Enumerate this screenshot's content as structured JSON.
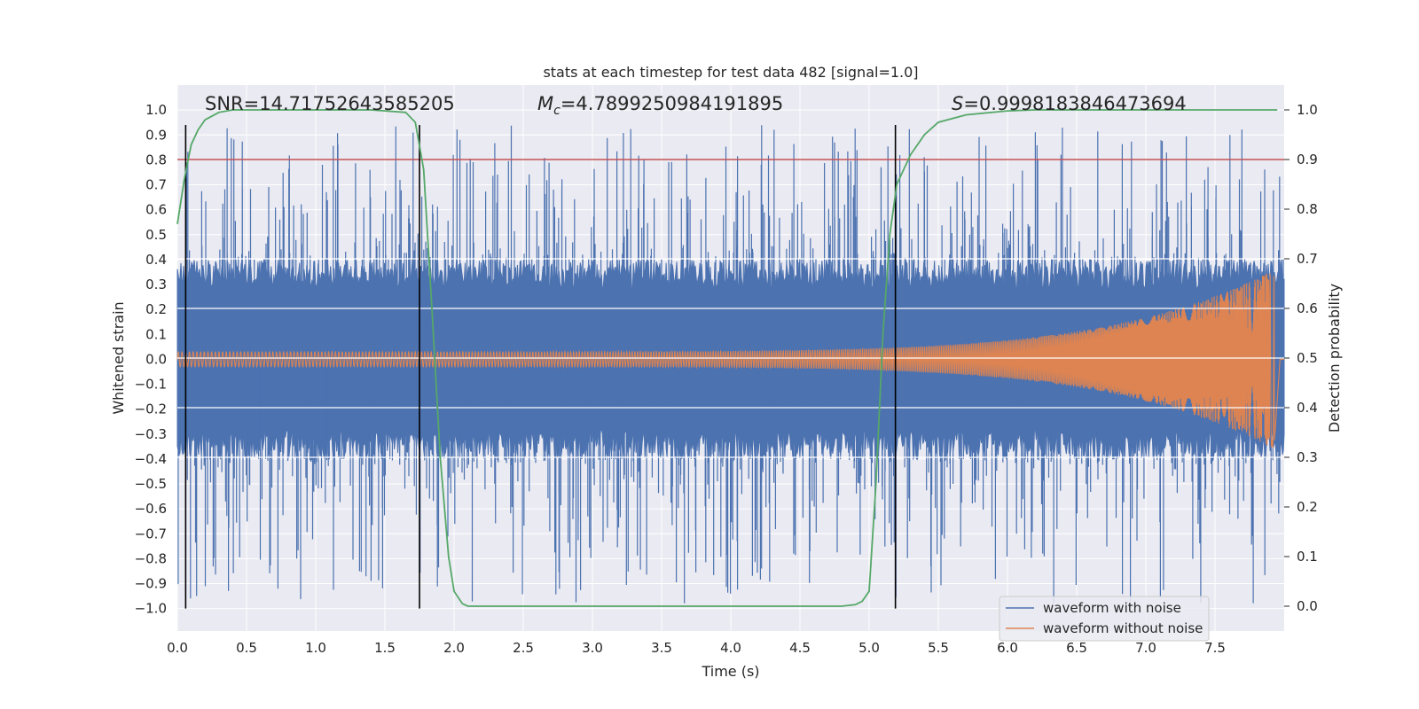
{
  "chart_data": {
    "type": "line",
    "title": "stats at each timestep for test data 482 [signal=1.0]",
    "xlabel": "Time (s)",
    "ylabel": "Whitened strain",
    "y2label": "Detection probability",
    "xlim": [
      0.0,
      8.0
    ],
    "ylim": [
      -1.09,
      1.1
    ],
    "y2lim": [
      -0.05,
      1.05
    ],
    "x_ticks": [
      "0.0",
      "0.5",
      "1.0",
      "1.5",
      "2.0",
      "2.5",
      "3.0",
      "3.5",
      "4.0",
      "4.5",
      "5.0",
      "5.5",
      "6.0",
      "6.5",
      "7.0",
      "7.5"
    ],
    "y_ticks": [
      "1.0",
      "0.9",
      "0.8",
      "0.7",
      "0.6",
      "0.5",
      "0.4",
      "0.3",
      "0.2",
      "0.1",
      "0.0",
      "−0.1",
      "−0.2",
      "−0.3",
      "−0.4",
      "−0.5",
      "−0.6",
      "−0.7",
      "−0.8",
      "−0.9",
      "−1.0"
    ],
    "y2_ticks": [
      "1.0",
      "0.9",
      "0.8",
      "0.7",
      "0.6",
      "0.5",
      "0.4",
      "0.3",
      "0.2",
      "0.1",
      "0.0"
    ],
    "annotations": {
      "snr": "SNR=14.71752643585205",
      "mc_symbol": "M",
      "mc_sub": "c",
      "mc_value": "=4.7899250984191895",
      "s_symbol": "S",
      "s_value": "=0.9998183846473694"
    },
    "threshold": {
      "axis": "right",
      "value": 0.9,
      "color": "#c44e52"
    },
    "vertical_lines": {
      "x": [
        0.06,
        1.75,
        5.19
      ],
      "y_range": [
        -1.0,
        0.94
      ],
      "color": "#000000"
    },
    "detection_probability": {
      "name": "detection probability",
      "axis": "right",
      "color": "#55a868",
      "x": [
        0.0,
        0.05,
        0.1,
        0.15,
        0.2,
        0.3,
        0.4,
        0.6,
        1.0,
        1.4,
        1.65,
        1.72,
        1.78,
        1.84,
        1.9,
        1.96,
        2.0,
        2.06,
        2.1,
        2.5,
        3.0,
        3.5,
        4.0,
        4.5,
        4.8,
        4.9,
        4.95,
        5.0,
        5.05,
        5.1,
        5.15,
        5.2,
        5.3,
        5.4,
        5.5,
        5.7,
        6.0,
        6.2,
        6.5,
        7.0,
        7.5,
        7.95
      ],
      "y": [
        0.77,
        0.86,
        0.93,
        0.96,
        0.98,
        0.995,
        1.0,
        1.0,
        1.0,
        1.0,
        0.995,
        0.975,
        0.88,
        0.6,
        0.3,
        0.1,
        0.03,
        0.005,
        0.0,
        0.0,
        0.0,
        0.0,
        0.0,
        0.0,
        0.0,
        0.003,
        0.01,
        0.03,
        0.25,
        0.55,
        0.75,
        0.85,
        0.91,
        0.95,
        0.975,
        0.99,
        0.998,
        1.0,
        1.0,
        1.0,
        1.0,
        1.0
      ]
    },
    "series": [
      {
        "name": "waveform with noise",
        "color": "#4c72b0",
        "x_range": [
          0.0,
          8.0
        ],
        "base_amplitude": 0.4,
        "peak_max": 0.94,
        "peak_min": -0.98
      },
      {
        "name": "waveform without noise",
        "color": "#dd8452",
        "x_range": [
          0.0,
          7.93
        ],
        "amplitude_start": 0.03,
        "amplitude_end": 0.36,
        "ringdown_to": 7.97,
        "ringdown_level": 0.0
      }
    ],
    "legend_position": "lower-right",
    "grid": true
  }
}
